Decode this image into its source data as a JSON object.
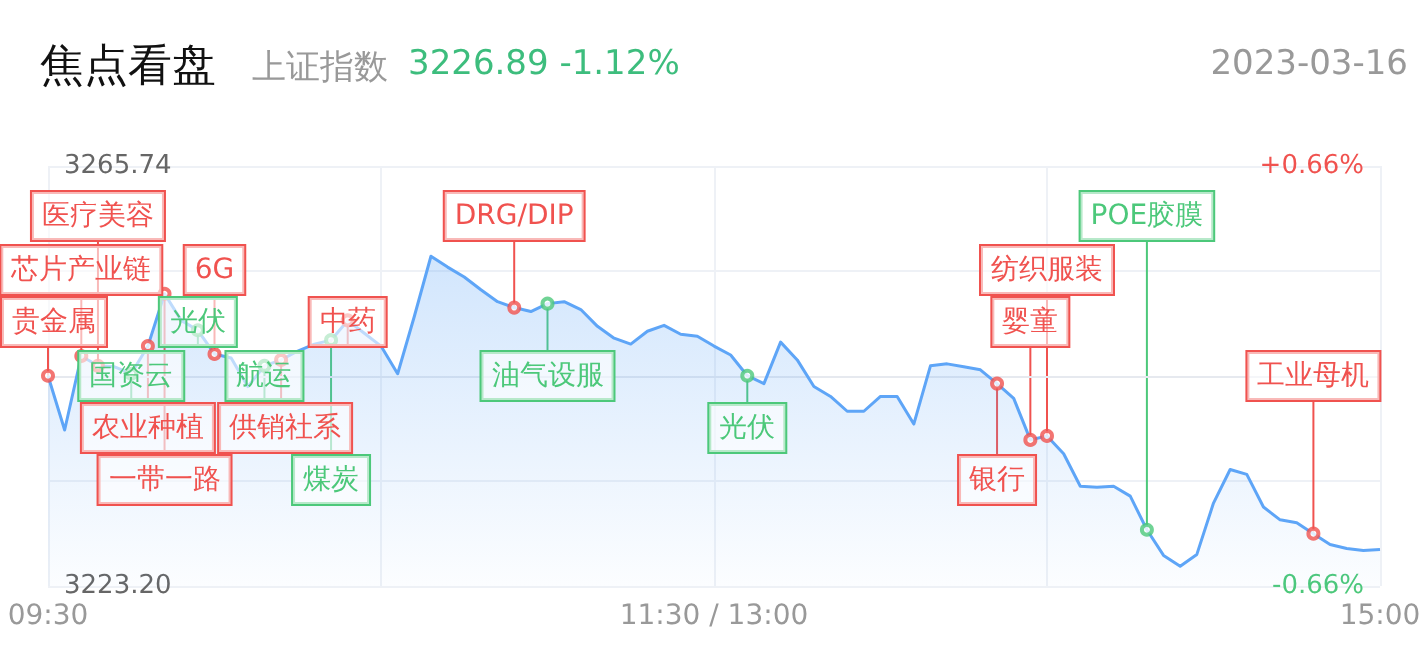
{
  "chart_data": {
    "type": "area",
    "title": "焦点看盘",
    "subtitle": "上证指数",
    "annotations": [
      "3226.89 -1.12%",
      "2023-03-16",
      {
        "text": "贵金属",
        "y": 3244.5
      },
      {
        "text": "芯片产业链",
        "y": 3246.5
      },
      {
        "text": "医疗美容",
        "y": 3245.5
      },
      {
        "text": "光伏",
        "y": 3249.1
      },
      {
        "text": "6G",
        "y": 3246.7
      },
      {
        "text": "国资云",
        "y": 3244.7
      },
      {
        "text": "农业种植",
        "y": 3247.5
      },
      {
        "text": "一带一路",
        "y": 3252.8
      },
      {
        "text": "航运",
        "y": 3245.5
      },
      {
        "text": "供销社系",
        "y": 3246.1
      },
      {
        "text": "煤炭",
        "y": 3248.1
      },
      {
        "text": "中药",
        "y": 3250.1
      },
      {
        "text": "DRG/DIP",
        "y": 3251.4
      },
      {
        "text": "油气设服",
        "y": 3251.8
      },
      {
        "text": "光伏",
        "y": 3244.5
      },
      {
        "text": "银行",
        "y": 3243.7
      },
      {
        "text": "婴童",
        "y": 3238.0
      },
      {
        "text": "纺织服装",
        "y": 3238.4
      },
      {
        "text": "POE胶膜",
        "y": 3228.9
      },
      {
        "text": "工业母机",
        "y": 3228.5
      }
    ],
    "categories": [
      "09:30",
      null,
      null,
      null,
      null,
      null,
      null,
      null,
      null,
      null,
      null,
      null,
      null,
      null,
      null,
      null,
      null,
      null,
      null,
      null,
      null,
      null,
      null,
      null,
      null,
      null,
      null,
      null,
      null,
      null,
      null,
      null,
      null,
      null,
      null,
      null,
      null,
      null,
      null,
      null,
      "11:30 / 13:00",
      null,
      null,
      null,
      null,
      null,
      null,
      null,
      null,
      null,
      null,
      null,
      null,
      null,
      null,
      null,
      null,
      null,
      null,
      null,
      null,
      null,
      null,
      null,
      null,
      null,
      null,
      null,
      null,
      null,
      null,
      null,
      null,
      null,
      null,
      null,
      null,
      null,
      null,
      null,
      "15:00"
    ],
    "ylim": [
      3223.2,
      3265.74
    ],
    "yticks": [
      {
        "value": 3223.2,
        "label": "3223.20"
      },
      {
        "value": 3233.835,
        "label": null
      },
      {
        "value": 3244.47,
        "label": null
      },
      {
        "value": 3255.105,
        "label": null
      },
      {
        "value": 3265.74,
        "label": "3265.74"
      }
    ],
    "y2lim": [
      -0.66,
      0.66
    ],
    "y2ticks": [
      {
        "value": -0.66,
        "label": "-0.66%"
      },
      {
        "value": 0.66,
        "label": "+0.66%"
      }
    ],
    "grid": true,
    "marker": "none",
    "series": [
      {
        "color": "#5ea5f7",
        "values": [
          3244.5,
          3239.0,
          3246.5,
          3245.5,
          3245.4,
          3244.7,
          3247.5,
          3252.8,
          3250.1,
          3249.1,
          3246.7,
          3246.3,
          3243.4,
          3245.5,
          3246.1,
          3247.0,
          3247.7,
          3248.1,
          3250.1,
          3248.8,
          3247.5,
          3244.7,
          3250.5,
          3256.6,
          3255.5,
          3254.5,
          3253.2,
          3252.0,
          3251.4,
          3251.0,
          3251.8,
          3252.0,
          3251.2,
          3249.5,
          3248.3,
          3247.7,
          3249.0,
          3249.6,
          3248.7,
          3248.5,
          3247.5,
          3246.6,
          3244.5,
          3243.7,
          3247.9,
          3246.1,
          3243.4,
          3242.4,
          3240.9,
          3240.9,
          3242.4,
          3242.4,
          3239.6,
          3245.5,
          3245.7,
          3245.4,
          3245.1,
          3243.7,
          3242.2,
          3238.0,
          3238.4,
          3236.6,
          3233.3,
          3233.2,
          3233.3,
          3232.3,
          3228.9,
          3226.3,
          3225.2,
          3226.4,
          3231.6,
          3235.0,
          3234.5,
          3231.2,
          3229.9,
          3229.6,
          3228.5,
          3227.4,
          3227.0,
          3226.8,
          3226.9
        ]
      },
      {
        "type": "scatter",
        "marker": "circle",
        "color": "#f0524f",
        "values": [
          3244.5,
          null,
          3246.5,
          3245.5,
          null,
          null,
          3247.5,
          3252.8,
          null,
          null,
          3246.7,
          null,
          null,
          null,
          3246.1,
          null,
          null,
          null,
          3250.1,
          null,
          null,
          null,
          null,
          null,
          null,
          null,
          null,
          null,
          3251.4,
          null,
          null,
          null,
          null,
          null,
          null,
          null,
          null,
          null,
          null,
          null,
          null,
          null,
          null,
          null,
          null,
          null,
          null,
          null,
          null,
          null,
          null,
          null,
          null,
          null,
          null,
          null,
          null,
          3243.7,
          null,
          3238.0,
          3238.4,
          null,
          null,
          null,
          null,
          null,
          null,
          null,
          null,
          null,
          null,
          null,
          null,
          null,
          null,
          null,
          3228.5,
          null,
          null,
          null,
          null
        ]
      },
      {
        "type": "scatter",
        "marker": "circle",
        "color": "#4cc87a",
        "values": [
          null,
          null,
          null,
          null,
          null,
          3244.7,
          null,
          null,
          null,
          3249.1,
          null,
          null,
          null,
          3245.5,
          null,
          null,
          null,
          3248.1,
          null,
          null,
          null,
          null,
          null,
          null,
          null,
          null,
          null,
          null,
          null,
          null,
          3251.8,
          null,
          null,
          null,
          null,
          null,
          null,
          null,
          null,
          null,
          null,
          null,
          3244.5,
          null,
          null,
          null,
          null,
          null,
          null,
          null,
          null,
          null,
          null,
          null,
          null,
          null,
          null,
          null,
          null,
          null,
          null,
          null,
          null,
          null,
          null,
          null,
          3228.9,
          null,
          null,
          null,
          null,
          null,
          null,
          null,
          null,
          null,
          null,
          null,
          null,
          null,
          null
        ]
      }
    ]
  }
}
